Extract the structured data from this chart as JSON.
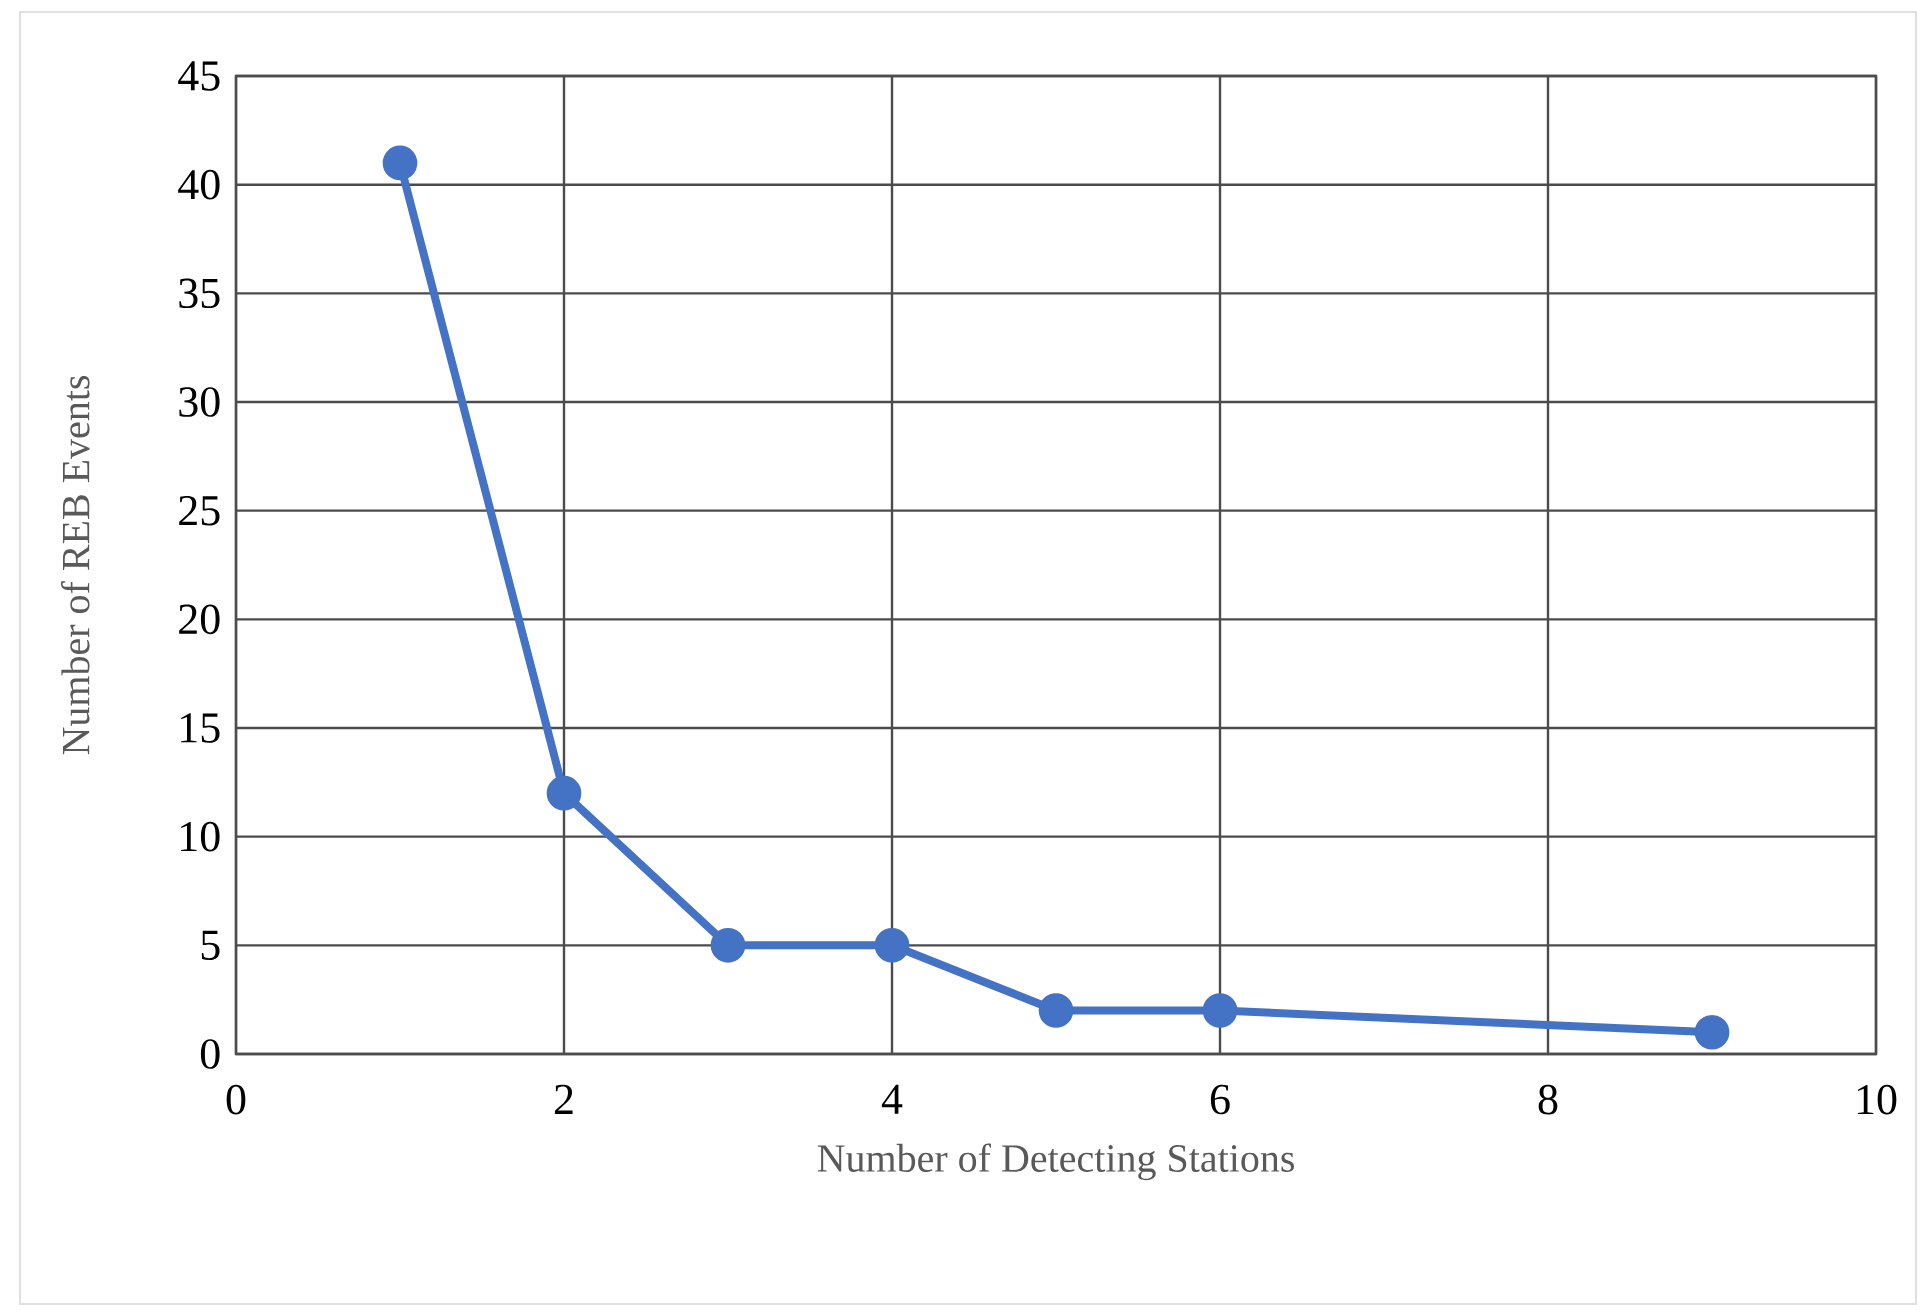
{
  "chart_data": {
    "type": "line",
    "xlabel": "Number of Detecting Stations",
    "ylabel": "Number of REB Events",
    "x": [
      1,
      2,
      3,
      4,
      5,
      6,
      9
    ],
    "series": [
      {
        "color": "#4472c4",
        "values": [
          41,
          12,
          5,
          5,
          2,
          2,
          1
        ]
      }
    ],
    "xlim": [
      0,
      10
    ],
    "xticks": [
      0,
      2,
      4,
      6,
      8,
      10
    ],
    "ylim": [
      0,
      45
    ],
    "yticks": [
      0,
      5,
      10,
      15,
      20,
      25,
      30,
      35,
      40,
      45
    ],
    "grid": true,
    "marker": "circle",
    "line_style": "solid"
  }
}
